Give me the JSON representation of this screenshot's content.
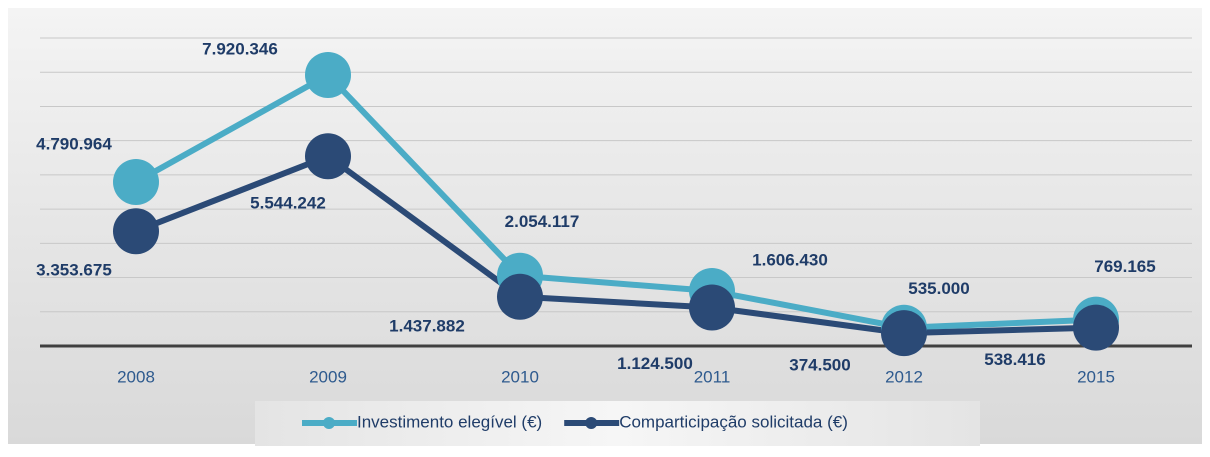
{
  "chart_data": {
    "type": "line",
    "categories": [
      "2008",
      "2009",
      "2010",
      "2011",
      "2012",
      "2015"
    ],
    "series": [
      {
        "name": "Investimento elegível (€)",
        "color": "#4bacc6",
        "values": [
          4790964,
          7920346,
          2054117,
          1606430,
          535000,
          769165
        ],
        "value_labels": [
          "4.790.964",
          "7.920.346",
          "2.054.117",
          "1.606.430",
          "535.000",
          "769.165"
        ]
      },
      {
        "name": "Comparticipação solicitada (€)",
        "color": "#2b4a76",
        "values": [
          3353675,
          5544242,
          1437882,
          1124500,
          374500,
          538416
        ],
        "value_labels": [
          "3.353.675",
          "5.544.242",
          "1.437.882",
          "1.124.500",
          "374.500",
          "538.416"
        ]
      }
    ],
    "ylim": [
      0,
      9000000
    ],
    "yticks": [
      0,
      1000000,
      2000000,
      3000000,
      4000000,
      5000000,
      6000000,
      7000000,
      8000000,
      9000000
    ],
    "grid": true,
    "legend": "bottom"
  }
}
